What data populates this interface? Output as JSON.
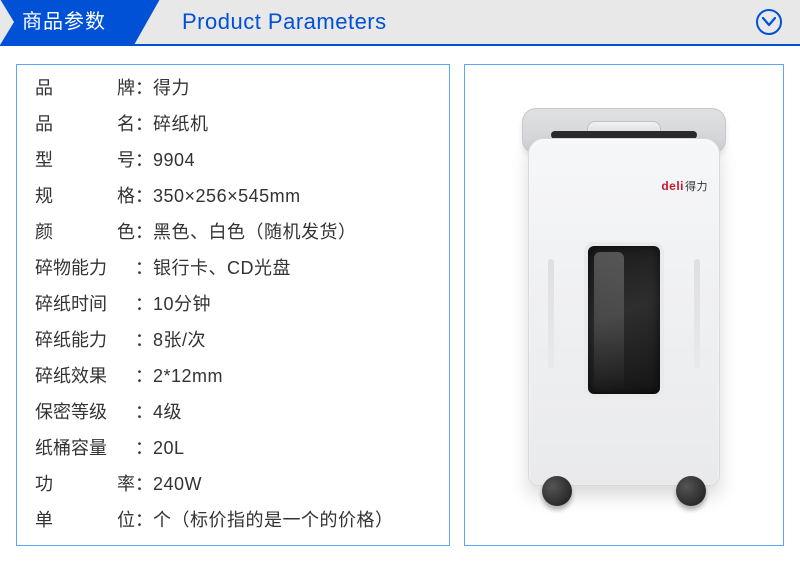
{
  "header": {
    "title_zh": "商品参数",
    "title_en": "Product Parameters",
    "accent_color": "#0051d6",
    "header_bg": "#e8e8e8",
    "panel_border": "#5aa9f8"
  },
  "product_illustration": {
    "brand_label": "deli",
    "brand_cn": "得力"
  },
  "specs": [
    {
      "label": "品牌",
      "justify": true,
      "value": "得力"
    },
    {
      "label": "品名",
      "justify": true,
      "value": "碎纸机"
    },
    {
      "label": "型号",
      "justify": true,
      "value": "9904"
    },
    {
      "label": "规格",
      "justify": true,
      "value": "350×256×545mm"
    },
    {
      "label": "颜色",
      "justify": true,
      "value": "黑色、白色（随机发货）"
    },
    {
      "label": "碎物能力",
      "justify": false,
      "value": "银行卡、CD光盘"
    },
    {
      "label": "碎纸时间",
      "justify": false,
      "value": "10分钟"
    },
    {
      "label": "碎纸能力",
      "justify": false,
      "value": "8张/次"
    },
    {
      "label": "碎纸效果",
      "justify": false,
      "value": "2*12mm"
    },
    {
      "label": "保密等级",
      "justify": false,
      "value": "4级"
    },
    {
      "label": "纸桶容量",
      "justify": false,
      "value": "20L"
    },
    {
      "label": "功率",
      "justify": true,
      "value": "240W"
    },
    {
      "label": "单位",
      "justify": true,
      "value": "个（标价指的是一个的价格）"
    }
  ]
}
